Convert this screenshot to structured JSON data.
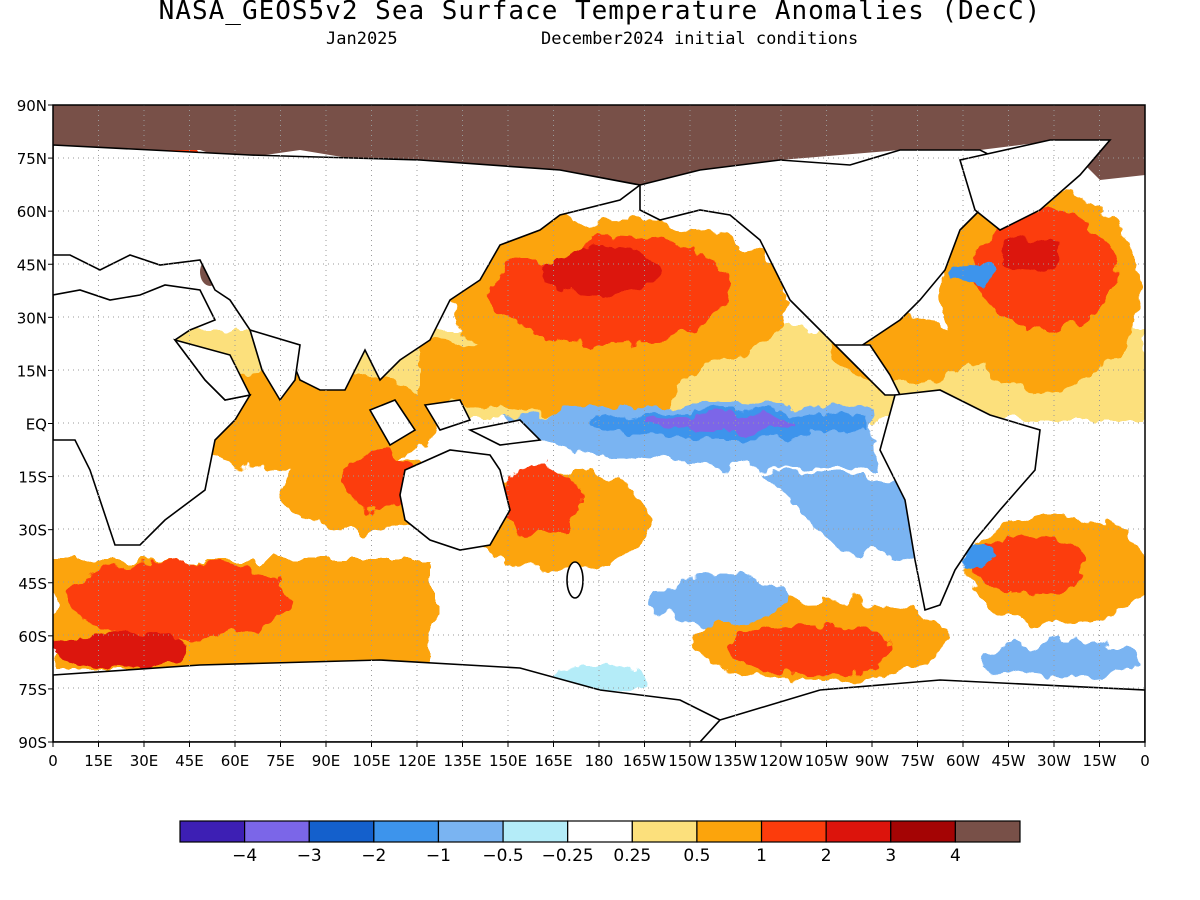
{
  "title": "NASA_GEOS5v2 Sea Surface Temperature Anomalies (DecC)",
  "subtitle_left": "Jan2025",
  "subtitle_right": "December2024 initial conditions",
  "chart_data": {
    "type": "heatmap",
    "projection": "equirectangular",
    "lon_range": [
      0,
      360
    ],
    "lat_range": [
      -90,
      90
    ],
    "grid": true,
    "lat_ticks": [
      "90N",
      "75N",
      "60N",
      "45N",
      "30N",
      "15N",
      "EQ",
      "15S",
      "30S",
      "45S",
      "60S",
      "75S",
      "90S"
    ],
    "lon_ticks": [
      "0",
      "15E",
      "30E",
      "45E",
      "60E",
      "75E",
      "90E",
      "105E",
      "120E",
      "135E",
      "150E",
      "165E",
      "180",
      "165W",
      "150W",
      "135W",
      "120W",
      "105W",
      "90W",
      "75W",
      "60W",
      "45W",
      "30W",
      "15W",
      "0"
    ],
    "colorbar": {
      "labels": [
        "−4",
        "−3",
        "−2",
        "−1",
        "−0.5",
        "−0.25",
        "0.25",
        "0.5",
        "1",
        "2",
        "3",
        "4"
      ],
      "colors": [
        "#3d1fb4",
        "#7b66e8",
        "#1460cc",
        "#3d94ec",
        "#7ab4f2",
        "#b4ecf8",
        "#ffffff",
        "#fce07c",
        "#fca40c",
        "#fc3c0c",
        "#dc140c",
        "#a40404",
        "#785048"
      ]
    },
    "features": {
      "equatorial_cold_tongue": "east-central Pacific, strongest near 140W",
      "north_pacific_warm": "30N-50N, 160E-140W",
      "north_atlantic_warm": "35N-60N, 60W-20W",
      "land_color": "#ffffff",
      "sea_ice_color": "#785048"
    }
  }
}
